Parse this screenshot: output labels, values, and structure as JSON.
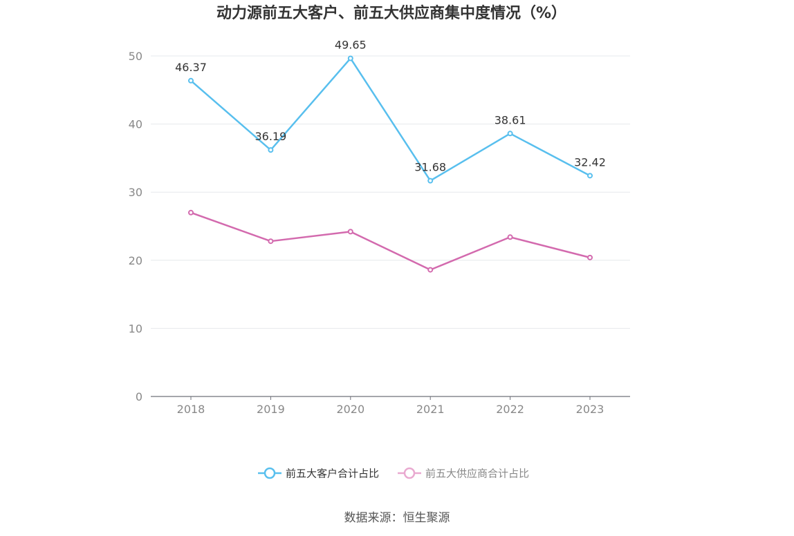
{
  "chart_data": {
    "type": "line",
    "title": "动力源前五大客户、前五大供应商集中度情况（%）",
    "categories": [
      "2018",
      "2019",
      "2020",
      "2021",
      "2022",
      "2023"
    ],
    "ylim": [
      0,
      50
    ],
    "yticks": [
      0,
      10,
      20,
      30,
      40,
      50
    ],
    "grid": true,
    "legend_position": "bottom",
    "series": [
      {
        "name": "前五大客户合计占比",
        "color": "#58BFEE",
        "values": [
          46.37,
          36.19,
          49.65,
          31.68,
          38.61,
          32.42
        ],
        "labels": [
          "46.37",
          "36.19",
          "49.65",
          "31.68",
          "38.61",
          "32.42"
        ]
      },
      {
        "name": "前五大供应商合计占比",
        "color": "#D36AAE",
        "legend_color": "#E9A9D0",
        "values": [
          27.0,
          22.8,
          24.2,
          18.6,
          23.4,
          20.4
        ],
        "labels": []
      }
    ]
  },
  "source": "数据来源：恒生聚源"
}
